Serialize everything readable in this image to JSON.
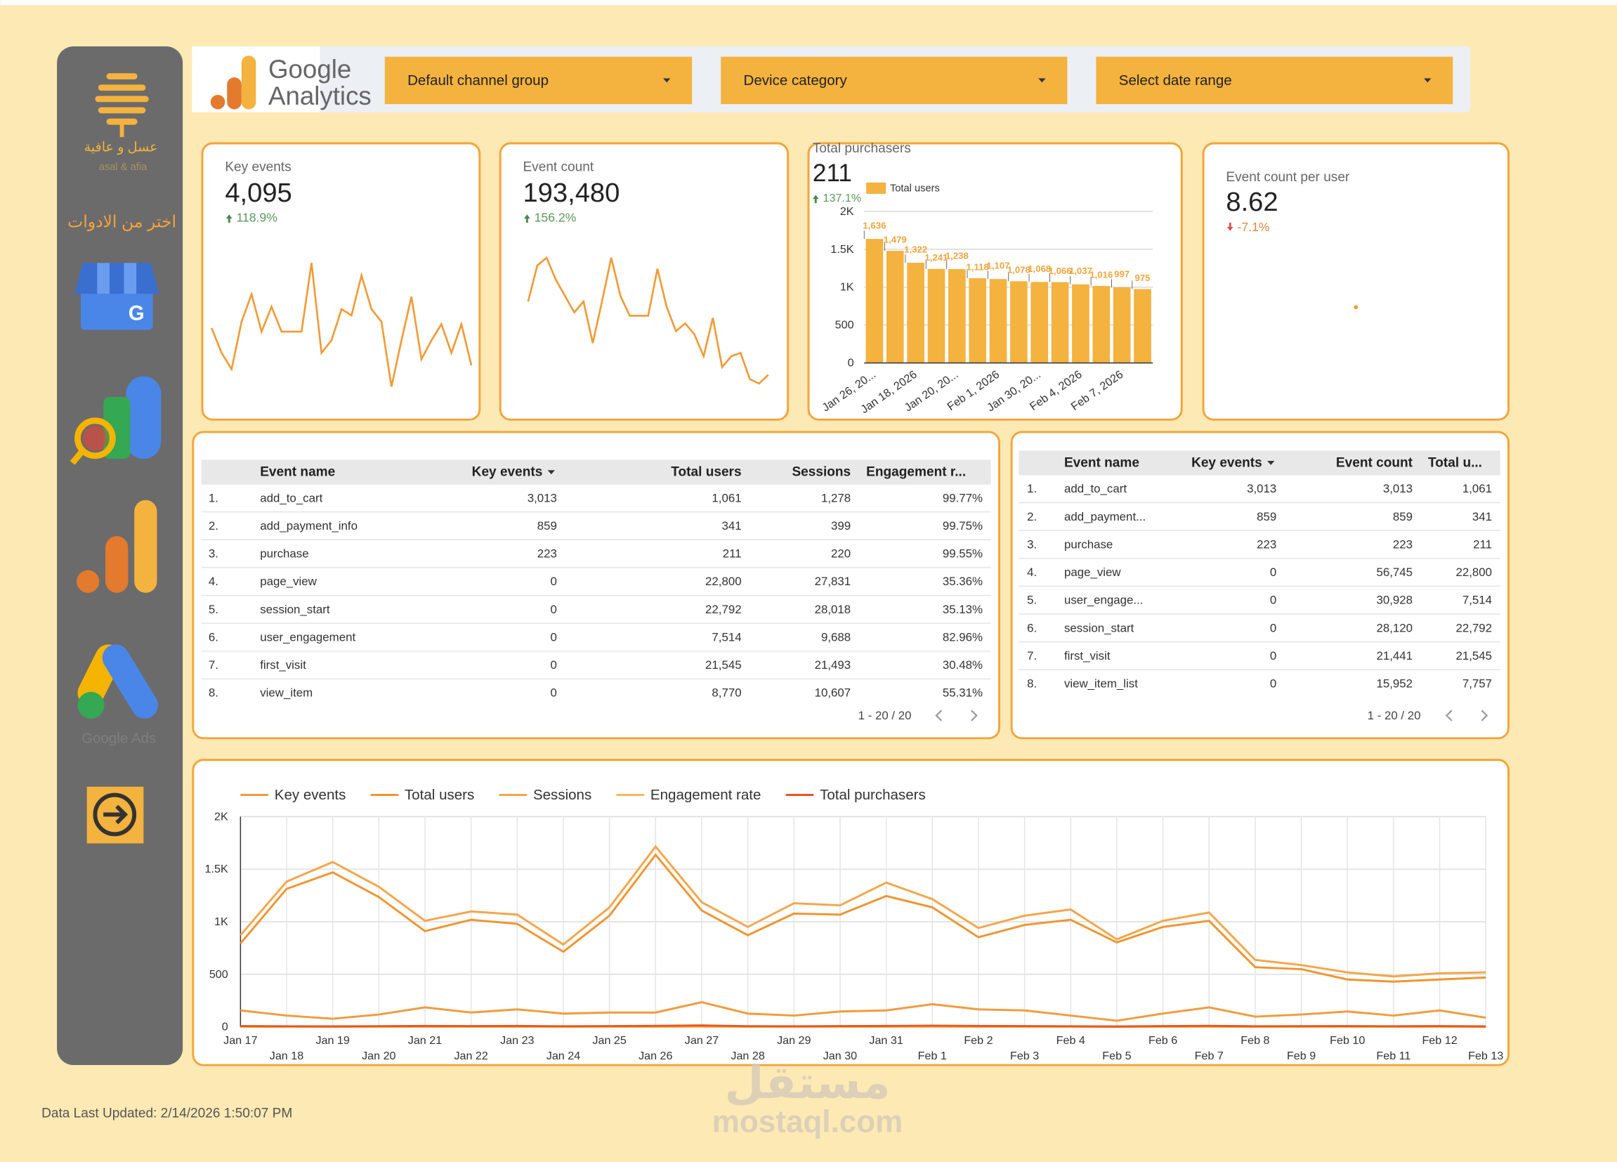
{
  "sidebar": {
    "brand_ar": "عسل و عافية",
    "brand_en": "asal & afia",
    "prompt": "اختر من الادوات",
    "google_ads": "Google Ads"
  },
  "header": {
    "logo_line1": "Google",
    "logo_line2": "Analytics",
    "filters": [
      "Default channel group",
      "Device category",
      "Select date range"
    ]
  },
  "scorecards": [
    {
      "label": "Key events",
      "value": "4,095",
      "change": "118.9%"
    },
    {
      "label": "Event count",
      "value": "193,480",
      "change": "156.2%"
    },
    {
      "label": "Total purchasers",
      "value": "211",
      "change": "137.1%"
    },
    {
      "label": "Event count per user",
      "value": "8.62",
      "change": "-7.1%"
    }
  ],
  "tables": [
    {
      "columns": [
        "Event name",
        "Key events",
        "Total users",
        "Sessions",
        "Engagement r..."
      ],
      "rows": [
        [
          "1.",
          "add_to_cart",
          "3,013",
          "1,061",
          "1,278",
          "99.77%"
        ],
        [
          "2.",
          "add_payment_info",
          "859",
          "341",
          "399",
          "99.75%"
        ],
        [
          "3.",
          "purchase",
          "223",
          "211",
          "220",
          "99.55%"
        ],
        [
          "4.",
          "page_view",
          "0",
          "22,800",
          "27,831",
          "35.36%"
        ],
        [
          "5.",
          "session_start",
          "0",
          "22,792",
          "28,018",
          "35.13%"
        ],
        [
          "6.",
          "user_engagement",
          "0",
          "7,514",
          "9,688",
          "82.96%"
        ],
        [
          "7.",
          "first_visit",
          "0",
          "21,545",
          "21,493",
          "30.48%"
        ],
        [
          "8.",
          "view_item",
          "0",
          "8,770",
          "10,607",
          "55.31%"
        ]
      ],
      "pagination": "1 - 20 / 20"
    },
    {
      "columns": [
        "Event name",
        "Key events",
        "Event count",
        "Total u..."
      ],
      "rows": [
        [
          "1.",
          "add_to_cart",
          "3,013",
          "3,013",
          "1,061"
        ],
        [
          "2.",
          "add_payment...",
          "859",
          "859",
          "341"
        ],
        [
          "3.",
          "purchase",
          "223",
          "223",
          "211"
        ],
        [
          "4.",
          "page_view",
          "0",
          "56,745",
          "22,800"
        ],
        [
          "5.",
          "user_engage...",
          "0",
          "30,928",
          "7,514"
        ],
        [
          "6.",
          "session_start",
          "0",
          "28,120",
          "22,792"
        ],
        [
          "7.",
          "first_visit",
          "0",
          "21,441",
          "21,545"
        ],
        [
          "8.",
          "view_item_list",
          "0",
          "15,952",
          "7,757"
        ]
      ],
      "pagination": "1 - 20 / 20"
    }
  ],
  "footer": {
    "updated": "Data Last Updated: 2/14/2026 1:50:07 PM"
  },
  "watermark": {
    "ar": "مستقل",
    "en": "mostaql.com"
  },
  "chart_data": [
    {
      "type": "sparkline",
      "color": "#f39a35",
      "values": [
        85,
        65,
        52,
        90,
        112,
        82,
        102,
        82,
        82,
        82,
        137,
        65,
        75,
        100,
        95,
        127,
        100,
        90,
        38,
        75,
        110,
        60,
        75,
        88,
        65,
        88,
        55
      ]
    },
    {
      "type": "sparkline",
      "color": "#f39a35",
      "values": [
        105,
        138,
        145,
        125,
        110,
        95,
        105,
        67,
        105,
        145,
        110,
        92,
        92,
        92,
        135,
        100,
        78,
        85,
        75,
        55,
        90,
        45,
        55,
        58,
        34,
        30,
        38
      ]
    },
    {
      "type": "bar",
      "categories": [
        "Jan 26, 20...",
        null,
        "Jan 18, 2026",
        null,
        "Jan 20, 20...",
        null,
        "Feb 1, 2026",
        null,
        "Jan 30, 20...",
        null,
        "Feb 4, 2026",
        null,
        "Feb 7, 2026",
        null
      ],
      "series": [
        {
          "name": "Total users",
          "color": "#f4b23e",
          "values": [
            1636,
            1479,
            1322,
            1241,
            1238,
            1118,
            1107,
            1078,
            1068,
            1066,
            1037,
            1016,
            997,
            975
          ],
          "value_labels": [
            "1,636",
            "1,479",
            "1,322",
            "1,241",
            "1,238",
            "1,118",
            "1,107",
            "1,078",
            "1,068",
            "1,066",
            "1,037",
            "1,016",
            "997",
            "975"
          ]
        }
      ],
      "ylim": [
        0,
        2000
      ],
      "yticks": [
        0,
        500,
        {
          "value": 1000,
          "label": "1K"
        },
        {
          "value": 1500,
          "label": "1.5K"
        },
        {
          "value": 2000,
          "label": "2K"
        }
      ],
      "grid": true
    },
    {
      "type": "line",
      "categories": [
        "Jan 17",
        "Jan 18",
        "Jan 19",
        "Jan 20",
        "Jan 21",
        "Jan 22",
        "Jan 23",
        "Jan 24",
        "Jan 25",
        "Jan 26",
        "Jan 27",
        "Jan 28",
        "Jan 29",
        "Jan 30",
        "Jan 31",
        "Feb 1",
        "Feb 2",
        "Feb 3",
        "Feb 4",
        "Feb 5",
        "Feb 6",
        "Feb 7",
        "Feb 8",
        "Feb 9",
        "Feb 10",
        "Feb 11",
        "Feb 12",
        "Feb 13"
      ],
      "series": [
        {
          "name": "Key events",
          "color": "#f29b3c",
          "values": [
            157,
            108,
            78,
            118,
            186,
            137,
            167,
            127,
            137,
            137,
            235,
            127,
            108,
            147,
            157,
            216,
            167,
            157,
            108,
            59,
            127,
            186,
            98,
            118,
            147,
            108,
            157,
            88
          ]
        },
        {
          "name": "Total users",
          "color": "#f0952f",
          "values": [
            794,
            1313,
            1470,
            1235,
            911,
            1019,
            980,
            715,
            1058,
            1637,
            1107,
            872,
            1078,
            1068,
            1245,
            1137,
            853,
            970,
            1019,
            804,
            951,
            1009,
            568,
            549,
            451,
            431,
            451,
            470
          ]
        },
        {
          "name": "Sessions",
          "color": "#f4a64a",
          "values": [
            872,
            1382,
            1568,
            1333,
            1009,
            1098,
            1068,
            784,
            1137,
            1715,
            1186,
            951,
            1176,
            1156,
            1372,
            1215,
            941,
            1058,
            1117,
            833,
            1009,
            1088,
            637,
            588,
            519,
            480,
            510,
            519
          ]
        },
        {
          "name": "Engagement rate",
          "color": "#f7b860",
          "values": [
            0.6,
            0.6,
            0.6,
            0.6,
            0.6,
            0.6,
            0.6,
            0.6,
            0.6,
            0.6,
            0.6,
            0.6,
            0.6,
            0.6,
            0.6,
            0.6,
            0.6,
            0.6,
            0.6,
            0.6,
            0.6,
            0.6,
            0.6,
            0.6,
            0.6,
            0.6,
            0.6,
            0.6
          ]
        },
        {
          "name": "Total purchasers",
          "color": "#e8561f",
          "values": [
            8,
            6,
            5,
            7,
            9,
            8,
            9,
            6,
            8,
            10,
            14,
            7,
            6,
            8,
            9,
            12,
            9,
            8,
            6,
            4,
            8,
            10,
            6,
            7,
            8,
            6,
            8,
            5
          ]
        }
      ],
      "ylim": [
        0,
        2000
      ],
      "yticks": [
        0,
        500,
        {
          "value": 1000,
          "label": "1K"
        },
        {
          "value": 1500,
          "label": "1.5K"
        },
        {
          "value": 2000,
          "label": "2K"
        }
      ],
      "grid": true
    }
  ]
}
